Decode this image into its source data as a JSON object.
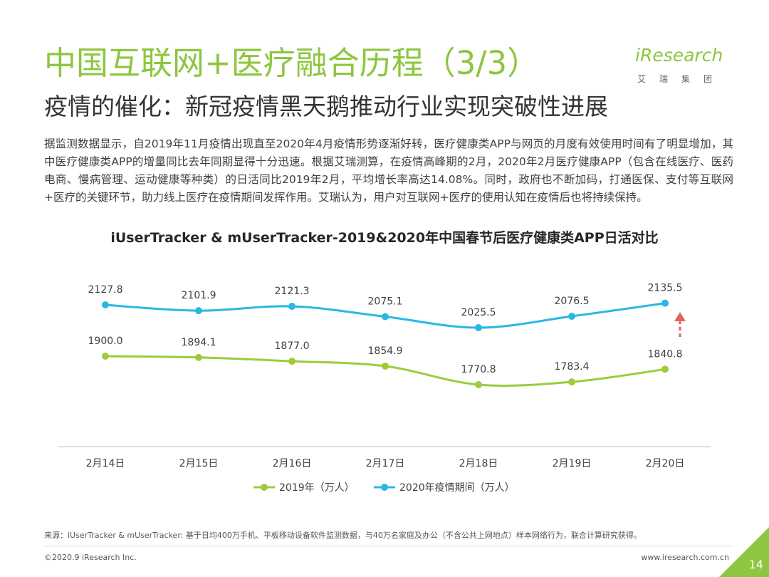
{
  "header": {
    "title": "中国互联网+医疗融合历程（3/3）",
    "subtitle": "疫情的催化：新冠疫情黑天鹅推动行业实现突破性进展",
    "logo_main": "iResearch",
    "logo_sub": "艾瑞集团"
  },
  "body": {
    "paragraph": "据监测数据显示，自2019年11月疫情出现直至2020年4月疫情形势逐渐好转，医疗健康类APP与网页的月度有效使用时间有了明显增加，其中医疗健康类APP的增量同比去年同期显得十分迅速。根据艾瑞测算，在疫情高峰期的2月，2020年2月医疗健康APP（包含在线医疗、医药电商、慢病管理、运动健康等种类）的日活同比2019年2月，平均增长率高达14.08%。同时，政府也不断加码，打通医保、支付等互联网+医疗的关键环节，助力线上医疗在疫情期间发挥作用。艾瑞认为，用户对互联网+医疗的使用认知在疫情后也将持续保持。"
  },
  "chart_data": {
    "type": "line",
    "title": "iUserTracker & mUserTracker-2019&2020年中国春节后医疗健康类APP日活对比",
    "categories": [
      "2月14日",
      "2月15日",
      "2月16日",
      "2月17日",
      "2月18日",
      "2月19日",
      "2月20日"
    ],
    "series": [
      {
        "name": "2019年（万人）",
        "color": "#9ccc3c",
        "values": [
          1900.0,
          1894.1,
          1877.0,
          1854.9,
          1770.8,
          1783.4,
          1840.8
        ]
      },
      {
        "name": "2020年疫情期间（万人）",
        "color": "#2ab7e3",
        "values": [
          2127.8,
          2101.9,
          2121.3,
          2075.1,
          2025.5,
          2076.5,
          2135.5
        ]
      }
    ],
    "grid": false,
    "legend_position": "bottom",
    "annotation": "up-arrow-dashed",
    "annotation_color": "#e06666"
  },
  "footer": {
    "source": "来源：iUserTracker & mUserTracker: 基于日均400万手机、平板移动设备软件监测数据，与40万名家庭及办公（不含公共上网地点）样本网络行为，联合计算研究获得。",
    "copyright": "©2020.9 iResearch Inc.",
    "website": "www.iresearch.com.cn",
    "page_number": "14"
  }
}
